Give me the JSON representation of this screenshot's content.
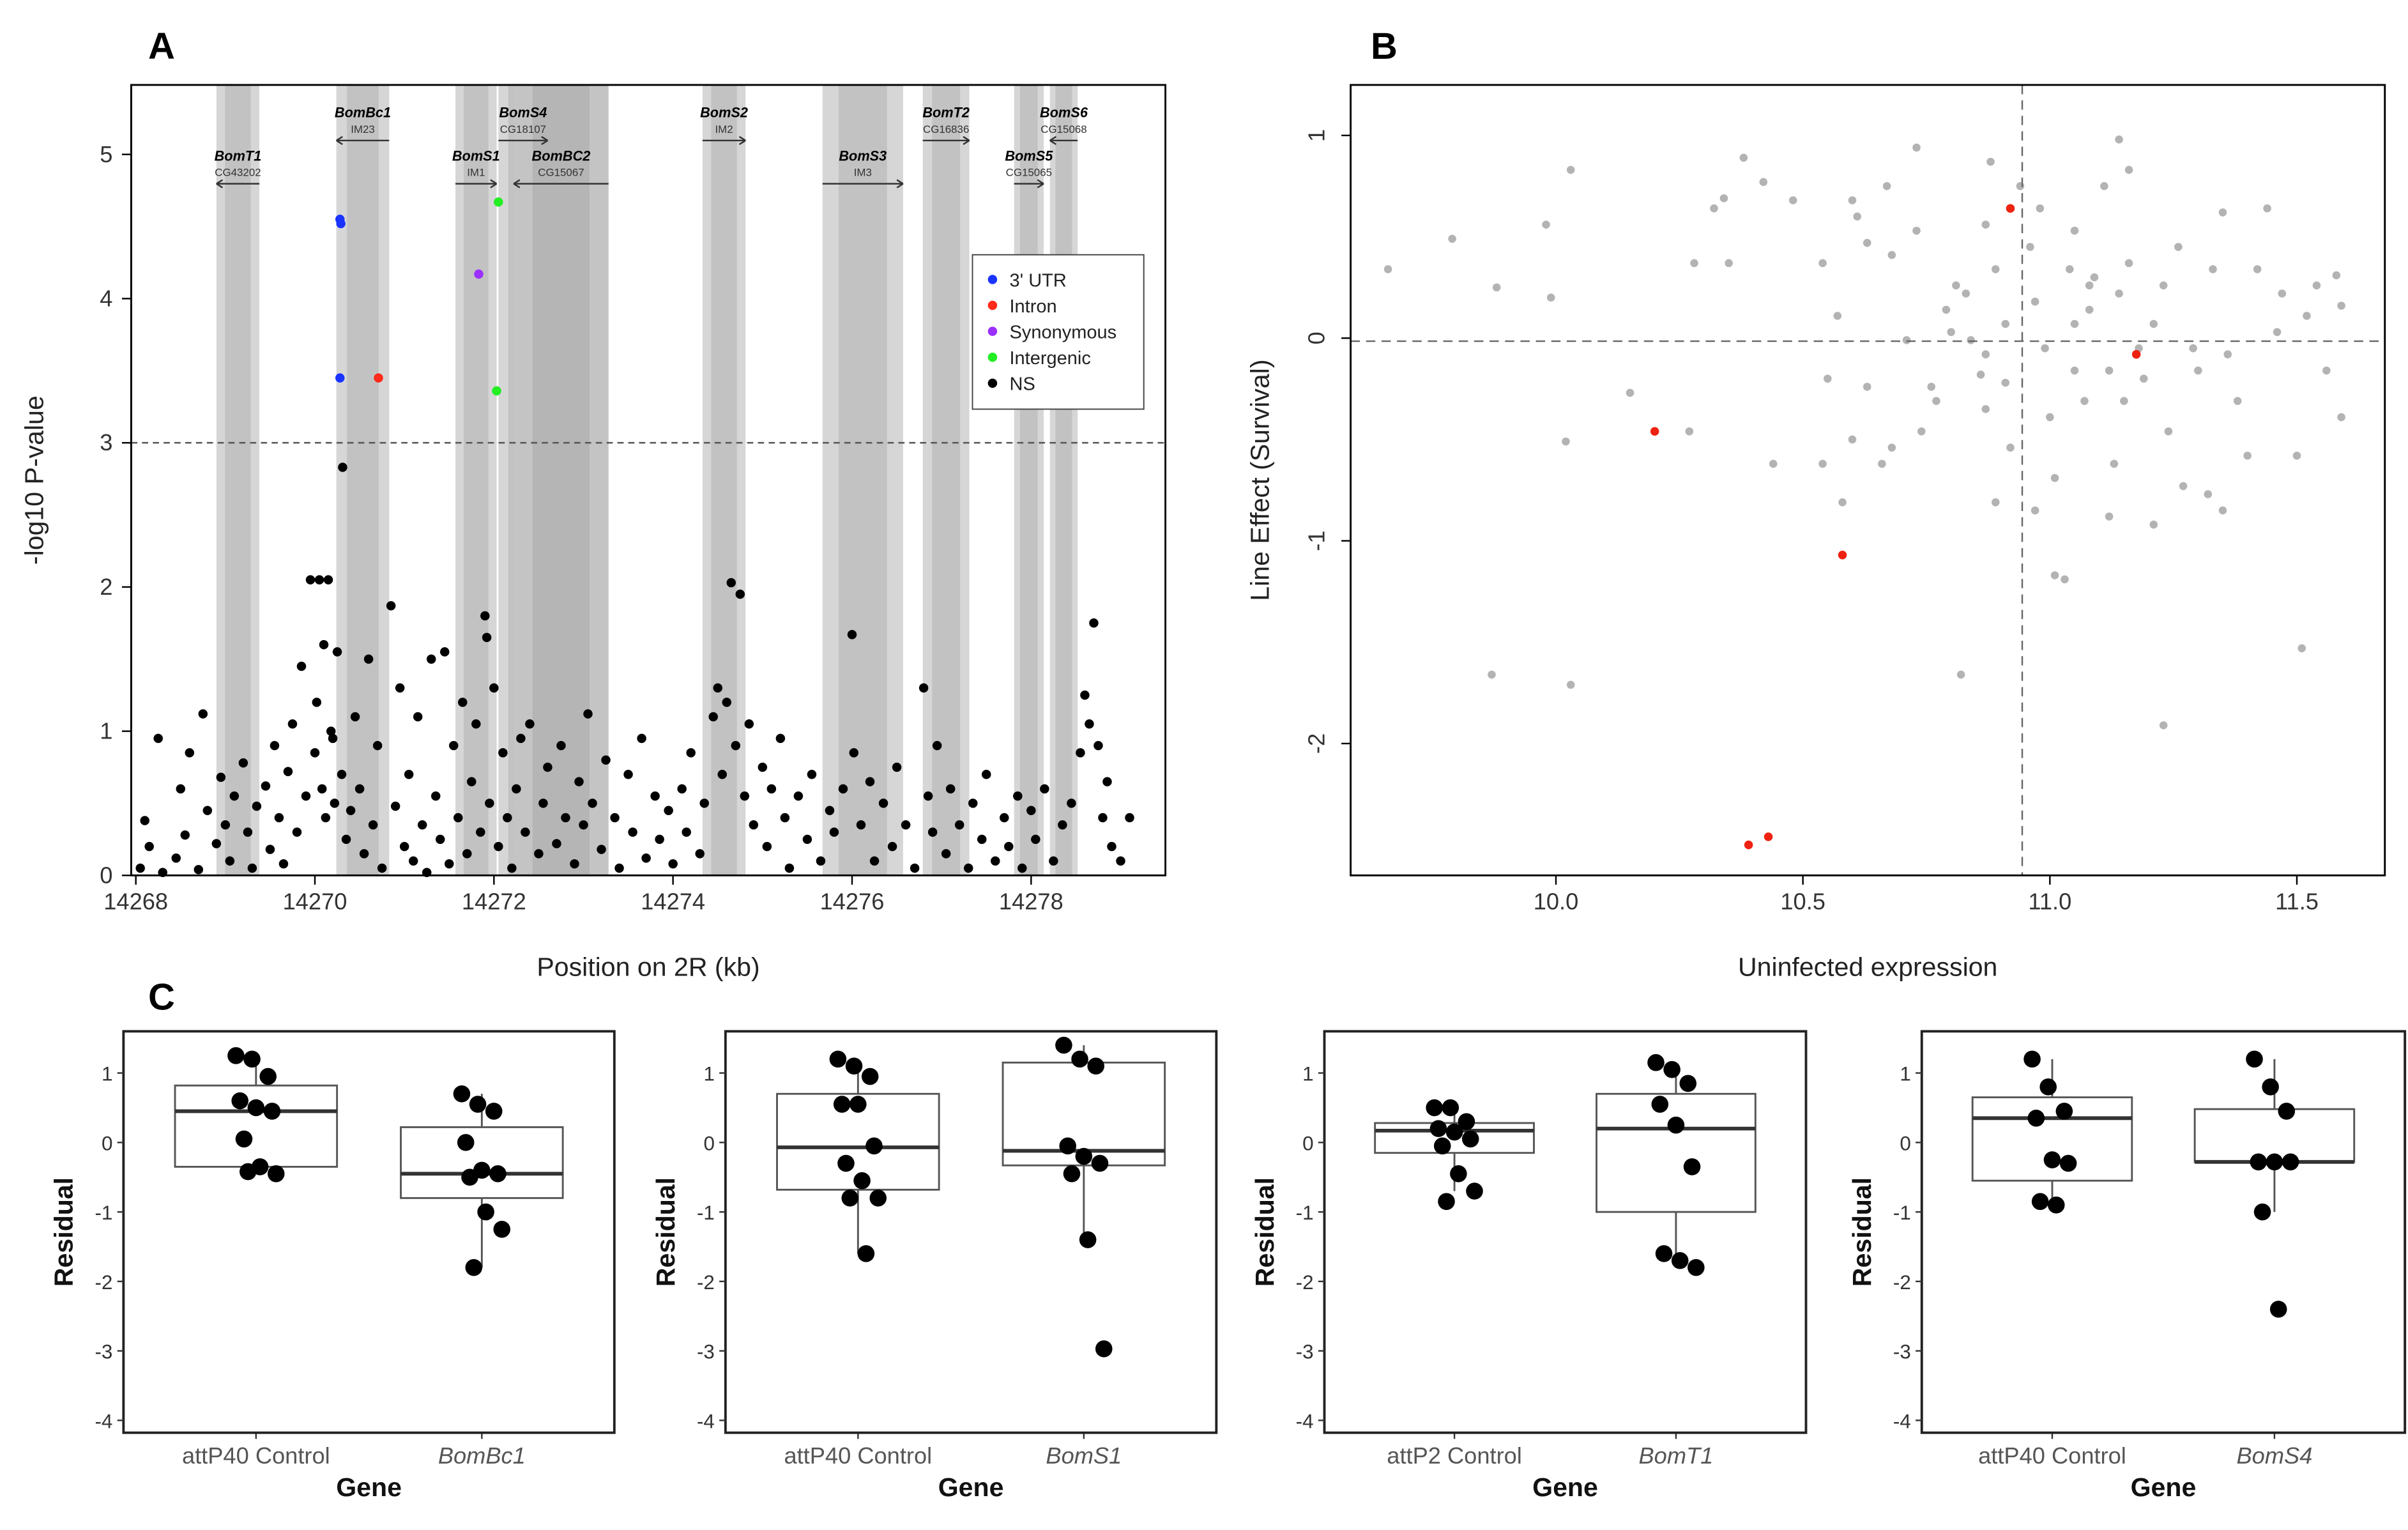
{
  "chart_data": [
    {
      "panel": "A",
      "type": "scatter",
      "xlabel": "Position on 2R (kb)",
      "ylabel": "-log10 P-value",
      "xlim": [
        14267.95,
        14279.5
      ],
      "ylim": [
        0,
        5.48
      ],
      "xticks": [
        14268,
        14270,
        14272,
        14274,
        14276,
        14278
      ],
      "yticks": [
        0,
        1,
        2,
        3,
        4,
        5
      ],
      "threshold": 3,
      "legend": {
        "position": "top-right",
        "entries": [
          {
            "label": "3' UTR",
            "color": "#1a33ff"
          },
          {
            "label": "Intron",
            "color": "#ff2a1a"
          },
          {
            "label": "Synonymous",
            "color": "#9b30ff"
          },
          {
            "label": "Intergenic",
            "color": "#22ee22"
          },
          {
            "label": "NS",
            "color": "#000000"
          }
        ]
      },
      "genes": [
        {
          "name": "BomT1",
          "id": "CG43202",
          "start": 14268.9,
          "end": 14269.38,
          "strand": "-",
          "row": 2
        },
        {
          "name": "BomBc1",
          "id": "IM23",
          "start": 14270.24,
          "end": 14270.83,
          "strand": "-",
          "row": 1
        },
        {
          "name": "BomS1",
          "id": "IM1",
          "start": 14271.57,
          "end": 14272.03,
          "strand": "+",
          "row": 2
        },
        {
          "name": "BomS4",
          "id": "CG18107",
          "start": 14272.05,
          "end": 14272.6,
          "strand": "+",
          "row": 1
        },
        {
          "name": "BomBC2",
          "id": "CG15067",
          "start": 14272.22,
          "end": 14273.28,
          "strand": "-",
          "row": 2
        },
        {
          "name": "BomS2",
          "id": "IM2",
          "start": 14274.33,
          "end": 14274.81,
          "strand": "+",
          "row": 1
        },
        {
          "name": "BomS3",
          "id": "IM3",
          "start": 14275.67,
          "end": 14276.57,
          "strand": "+",
          "row": 2
        },
        {
          "name": "BomT2",
          "id": "CG16836",
          "start": 14276.79,
          "end": 14277.31,
          "strand": "+",
          "row": 1
        },
        {
          "name": "BomS5",
          "id": "CG15065",
          "start": 14277.81,
          "end": 14278.14,
          "strand": "+",
          "row": 2
        },
        {
          "name": "BomS6",
          "id": "CG15068",
          "start": 14278.21,
          "end": 14278.52,
          "strand": "-",
          "row": 1
        }
      ],
      "significant": [
        {
          "x": 14270.28,
          "y": 4.55,
          "class": "3' UTR"
        },
        {
          "x": 14270.29,
          "y": 4.52,
          "class": "3' UTR"
        },
        {
          "x": 14270.28,
          "y": 3.45,
          "class": "3' UTR"
        },
        {
          "x": 14270.71,
          "y": 3.45,
          "class": "Intron"
        },
        {
          "x": 14271.83,
          "y": 4.17,
          "class": "Synonymous"
        },
        {
          "x": 14272.05,
          "y": 4.67,
          "class": "Intergenic"
        },
        {
          "x": 14272.03,
          "y": 3.36,
          "class": "Intergenic"
        },
        {
          "x": 14270.31,
          "y": 2.83,
          "class": "NS"
        }
      ],
      "ns_points": {
        "x": [
          14268.05,
          14268.1,
          14268.15,
          14268.25,
          14268.3,
          14268.45,
          14268.5,
          14268.55,
          14268.6,
          14268.7,
          14268.75,
          14268.8,
          14268.9,
          14268.95,
          14269.0,
          14269.05,
          14269.1,
          14269.2,
          14269.25,
          14269.3,
          14269.35,
          14269.45,
          14269.5,
          14269.55,
          14269.6,
          14269.65,
          14269.7,
          14269.75,
          14269.8,
          14269.85,
          14269.9,
          14269.95,
          14270.0,
          14270.02,
          14270.05,
          14270.08,
          14270.1,
          14270.12,
          14270.15,
          14270.18,
          14270.2,
          14270.22,
          14270.25,
          14270.3,
          14270.35,
          14270.4,
          14270.45,
          14270.5,
          14270.55,
          14270.6,
          14270.65,
          14270.7,
          14270.75,
          14270.85,
          14270.9,
          14270.95,
          14271.0,
          14271.05,
          14271.1,
          14271.15,
          14271.2,
          14271.25,
          14271.3,
          14271.35,
          14271.4,
          14271.45,
          14271.5,
          14271.55,
          14271.6,
          14271.65,
          14271.7,
          14271.75,
          14271.8,
          14271.85,
          14271.9,
          14271.92,
          14271.95,
          14272.0,
          14272.05,
          14272.1,
          14272.15,
          14272.2,
          14272.25,
          14272.3,
          14272.35,
          14272.4,
          14272.5,
          14272.55,
          14272.6,
          14272.7,
          14272.75,
          14272.8,
          14272.9,
          14272.95,
          14273.0,
          14273.05,
          14273.1,
          14273.2,
          14273.25,
          14273.35,
          14273.4,
          14273.5,
          14273.55,
          14273.65,
          14273.7,
          14273.8,
          14273.85,
          14273.95,
          14274.0,
          14274.1,
          14274.15,
          14274.2,
          14274.3,
          14274.35,
          14274.45,
          14274.5,
          14274.55,
          14274.6,
          14274.65,
          14274.7,
          14274.75,
          14274.8,
          14274.85,
          14274.9,
          14275.0,
          14275.05,
          14275.1,
          14275.2,
          14275.25,
          14275.3,
          14275.4,
          14275.5,
          14275.55,
          14275.65,
          14275.75,
          14275.8,
          14275.9,
          14276.0,
          14276.02,
          14276.1,
          14276.2,
          14276.25,
          14276.35,
          14276.45,
          14276.5,
          14276.6,
          14276.7,
          14276.8,
          14276.85,
          14276.9,
          14276.95,
          14277.05,
          14277.1,
          14277.2,
          14277.3,
          14277.35,
          14277.45,
          14277.5,
          14277.6,
          14277.7,
          14277.75,
          14277.85,
          14277.9,
          14278.0,
          14278.05,
          14278.15,
          14278.25,
          14278.35,
          14278.45,
          14278.55,
          14278.6,
          14278.65,
          14278.7,
          14278.75,
          14278.8,
          14278.85,
          14278.9,
          14279.0,
          14279.1
        ],
        "y": [
          0.05,
          0.38,
          0.2,
          0.95,
          0.02,
          0.12,
          0.6,
          0.28,
          0.85,
          0.04,
          1.12,
          0.45,
          0.22,
          0.68,
          0.35,
          0.1,
          0.55,
          0.78,
          0.3,
          0.05,
          0.48,
          0.62,
          0.18,
          0.9,
          0.4,
          0.08,
          0.72,
          1.05,
          0.3,
          1.45,
          0.55,
          2.05,
          0.85,
          1.2,
          2.05,
          0.6,
          1.6,
          0.4,
          2.05,
          1.0,
          0.95,
          0.5,
          1.55,
          0.7,
          0.25,
          0.45,
          1.1,
          0.6,
          0.15,
          1.5,
          0.35,
          0.9,
          0.05,
          1.87,
          0.48,
          1.3,
          0.2,
          0.7,
          0.1,
          1.1,
          0.35,
          0.02,
          1.5,
          0.55,
          0.25,
          1.55,
          0.08,
          0.9,
          0.4,
          1.2,
          0.15,
          0.65,
          1.05,
          0.3,
          1.8,
          1.65,
          0.5,
          1.3,
          0.2,
          0.85,
          0.4,
          0.05,
          0.6,
          0.95,
          0.3,
          1.05,
          0.15,
          0.5,
          0.75,
          0.22,
          0.9,
          0.4,
          0.08,
          0.65,
          0.35,
          1.12,
          0.5,
          0.18,
          0.8,
          0.4,
          0.05,
          0.7,
          0.3,
          0.95,
          0.12,
          0.55,
          0.25,
          0.45,
          0.08,
          0.6,
          0.3,
          0.85,
          0.15,
          0.5,
          1.1,
          1.3,
          0.7,
          1.2,
          2.03,
          0.9,
          1.95,
          0.55,
          1.05,
          0.35,
          0.75,
          0.2,
          0.6,
          0.95,
          0.4,
          0.05,
          0.55,
          0.25,
          0.7,
          0.1,
          0.45,
          0.3,
          0.6,
          1.67,
          0.85,
          0.35,
          0.65,
          0.1,
          0.5,
          0.2,
          0.75,
          0.35,
          0.05,
          1.3,
          0.55,
          0.3,
          0.9,
          0.15,
          0.6,
          0.35,
          0.05,
          0.5,
          0.25,
          0.7,
          0.1,
          0.4,
          0.2,
          0.55,
          0.05,
          0.45,
          0.25,
          0.6,
          0.1,
          0.35,
          0.5,
          0.85,
          1.25,
          1.05,
          1.75,
          0.9,
          0.4,
          0.65,
          0.2,
          0.1,
          0.4
        ]
      }
    },
    {
      "panel": "B",
      "type": "scatter",
      "xlabel": "Uninfected expression",
      "ylabel": "Line Effect (Survival)",
      "xlim": [
        9.584,
        11.678
      ],
      "ylim": [
        -2.65,
        1.25
      ],
      "xticks": [
        "10.0",
        "10.5",
        "11.0",
        "11.5"
      ],
      "yticks": [
        "1",
        "0",
        "-1",
        "-2"
      ],
      "vline": 10.944,
      "hline": -0.015,
      "highlight_color": "#ee2211",
      "highlighted": {
        "x": [
          10.92,
          11.175,
          10.2,
          10.58,
          10.39,
          10.43
        ],
        "y": [
          0.64,
          -0.08,
          -0.46,
          -1.07,
          -2.5,
          -2.46
        ]
      },
      "points": {
        "x": [
          9.66,
          9.79,
          9.88,
          9.98,
          10.03,
          9.99,
          10.02,
          9.87,
          10.03,
          10.15,
          10.27,
          10.28,
          10.32,
          10.34,
          10.38,
          10.35,
          10.42,
          10.44,
          10.54,
          10.57,
          10.55,
          10.54,
          10.58,
          10.6,
          10.61,
          10.63,
          10.68,
          10.68,
          10.66,
          10.73,
          10.73,
          10.74,
          10.76,
          10.77,
          10.79,
          10.8,
          10.81,
          10.83,
          10.82,
          10.84,
          10.86,
          10.87,
          10.87,
          10.88,
          10.89,
          10.89,
          10.91,
          10.91,
          10.92,
          10.94,
          10.96,
          10.97,
          10.98,
          10.99,
          11.0,
          11.01,
          11.01,
          11.03,
          11.04,
          11.05,
          11.05,
          11.07,
          11.08,
          11.08,
          11.09,
          11.11,
          11.12,
          11.13,
          11.14,
          11.14,
          11.15,
          11.16,
          11.16,
          11.18,
          11.19,
          11.21,
          11.23,
          11.23,
          11.24,
          11.26,
          11.27,
          11.29,
          11.3,
          11.32,
          11.33,
          11.35,
          11.36,
          11.38,
          11.4,
          11.42,
          11.44,
          11.46,
          11.47,
          11.5,
          11.51,
          11.52,
          11.54,
          11.56,
          11.58,
          11.59,
          11.59,
          10.67,
          10.63,
          10.6,
          10.71,
          10.48,
          10.87,
          11.05,
          10.97,
          11.12,
          11.21,
          11.35
        ],
        "y": [
          0.34,
          0.49,
          0.25,
          0.56,
          0.83,
          0.2,
          -0.51,
          -1.66,
          -1.71,
          -0.27,
          -0.46,
          0.37,
          0.64,
          0.69,
          0.89,
          0.37,
          0.77,
          -0.62,
          0.37,
          0.11,
          -0.2,
          -0.62,
          -0.81,
          0.68,
          0.6,
          0.47,
          0.41,
          -0.54,
          -0.62,
          0.94,
          0.53,
          -0.46,
          -0.24,
          -0.31,
          0.14,
          0.03,
          0.26,
          0.22,
          -1.66,
          -0.01,
          -0.18,
          -0.08,
          -0.35,
          0.87,
          0.34,
          -0.81,
          0.07,
          -0.22,
          -0.54,
          0.75,
          0.45,
          0.18,
          0.64,
          -0.05,
          -0.39,
          -0.69,
          -1.17,
          -1.19,
          0.34,
          0.07,
          -0.16,
          -0.31,
          0.14,
          0.26,
          0.3,
          0.75,
          -0.16,
          -0.62,
          0.98,
          0.22,
          -0.31,
          0.83,
          0.37,
          -0.05,
          -0.2,
          0.07,
          0.26,
          -1.91,
          -0.46,
          0.45,
          -0.73,
          -0.05,
          -0.16,
          -0.77,
          0.34,
          0.62,
          -0.08,
          -0.31,
          -0.58,
          0.34,
          0.64,
          0.03,
          0.22,
          -0.58,
          -1.53,
          0.11,
          0.26,
          -0.16,
          0.31,
          -0.39,
          0.16,
          0.75,
          -0.24,
          -0.5,
          -0.01,
          0.68,
          0.56,
          0.53,
          -0.85,
          -0.88,
          -0.92,
          -0.85
        ]
      }
    },
    {
      "panel": "C",
      "type": "box",
      "ylabel": "Residual",
      "xlabel": "Gene",
      "ylim": [
        -4.2,
        1.6
      ],
      "yticks": [
        "1",
        "0",
        "-1",
        "-2",
        "-3",
        "-4"
      ],
      "subplots": [
        {
          "groups": [
            {
              "label": "attP40 Control",
              "italic": false,
              "q1": -0.35,
              "median": 0.45,
              "q3": 0.82,
              "whisker_low": -0.45,
              "whisker_high": 1.2,
              "points": [
                1.25,
                1.2,
                0.95,
                0.6,
                0.5,
                0.45,
                0.05,
                -0.35,
                -0.45,
                -0.42
              ]
            },
            {
              "label": "BomBc1",
              "italic": true,
              "q1": -0.8,
              "median": -0.45,
              "q3": 0.22,
              "whisker_low": -1.8,
              "whisker_high": 0.7,
              "points": [
                0.7,
                0.55,
                0.45,
                0.0,
                -0.4,
                -0.45,
                -0.5,
                -1.0,
                -1.25,
                -1.8
              ]
            }
          ]
        },
        {
          "groups": [
            {
              "label": "attP40 Control",
              "italic": false,
              "q1": -0.68,
              "median": -0.07,
              "q3": 0.7,
              "whisker_low": -1.6,
              "whisker_high": 1.2,
              "points": [
                1.2,
                1.1,
                0.95,
                0.55,
                0.55,
                -0.05,
                -0.3,
                -0.55,
                -0.8,
                -0.8,
                -1.6
              ]
            },
            {
              "label": "BomS1",
              "italic": true,
              "q1": -0.33,
              "median": -0.12,
              "q3": 1.15,
              "whisker_low": -1.4,
              "whisker_high": 1.4,
              "points": [
                1.4,
                1.2,
                1.1,
                -0.05,
                -0.2,
                -0.3,
                -0.45,
                -1.4,
                -2.97
              ]
            }
          ]
        },
        {
          "groups": [
            {
              "label": "attP2 Control",
              "italic": false,
              "q1": -0.15,
              "median": 0.17,
              "q3": 0.28,
              "whisker_low": -0.7,
              "whisker_high": 0.5,
              "points": [
                0.5,
                0.5,
                0.3,
                0.2,
                0.15,
                0.05,
                -0.05,
                -0.45,
                -0.7,
                -0.85
              ]
            },
            {
              "label": "BomT1",
              "italic": true,
              "q1": -1.0,
              "median": 0.2,
              "q3": 0.7,
              "whisker_low": -1.8,
              "whisker_high": 1.15,
              "points": [
                1.15,
                1.05,
                0.85,
                0.55,
                0.25,
                -0.35,
                -1.6,
                -1.7,
                -1.8
              ]
            }
          ]
        },
        {
          "groups": [
            {
              "label": "attP40 Control",
              "italic": false,
              "q1": -0.55,
              "median": 0.35,
              "q3": 0.65,
              "whisker_low": -0.9,
              "whisker_high": 1.2,
              "points": [
                1.2,
                0.8,
                0.45,
                0.35,
                -0.25,
                -0.3,
                -0.85,
                -0.9
              ]
            },
            {
              "label": "BomS4",
              "italic": true,
              "q1": -0.28,
              "median": -0.28,
              "q3": 0.48,
              "whisker_low": -1.0,
              "whisker_high": 1.2,
              "points": [
                1.2,
                0.8,
                0.45,
                -0.28,
                -0.28,
                -0.28,
                -1.0,
                -2.4
              ]
            }
          ]
        }
      ]
    }
  ],
  "panel_labels": {
    "a": "A",
    "b": "B",
    "c": "C"
  }
}
